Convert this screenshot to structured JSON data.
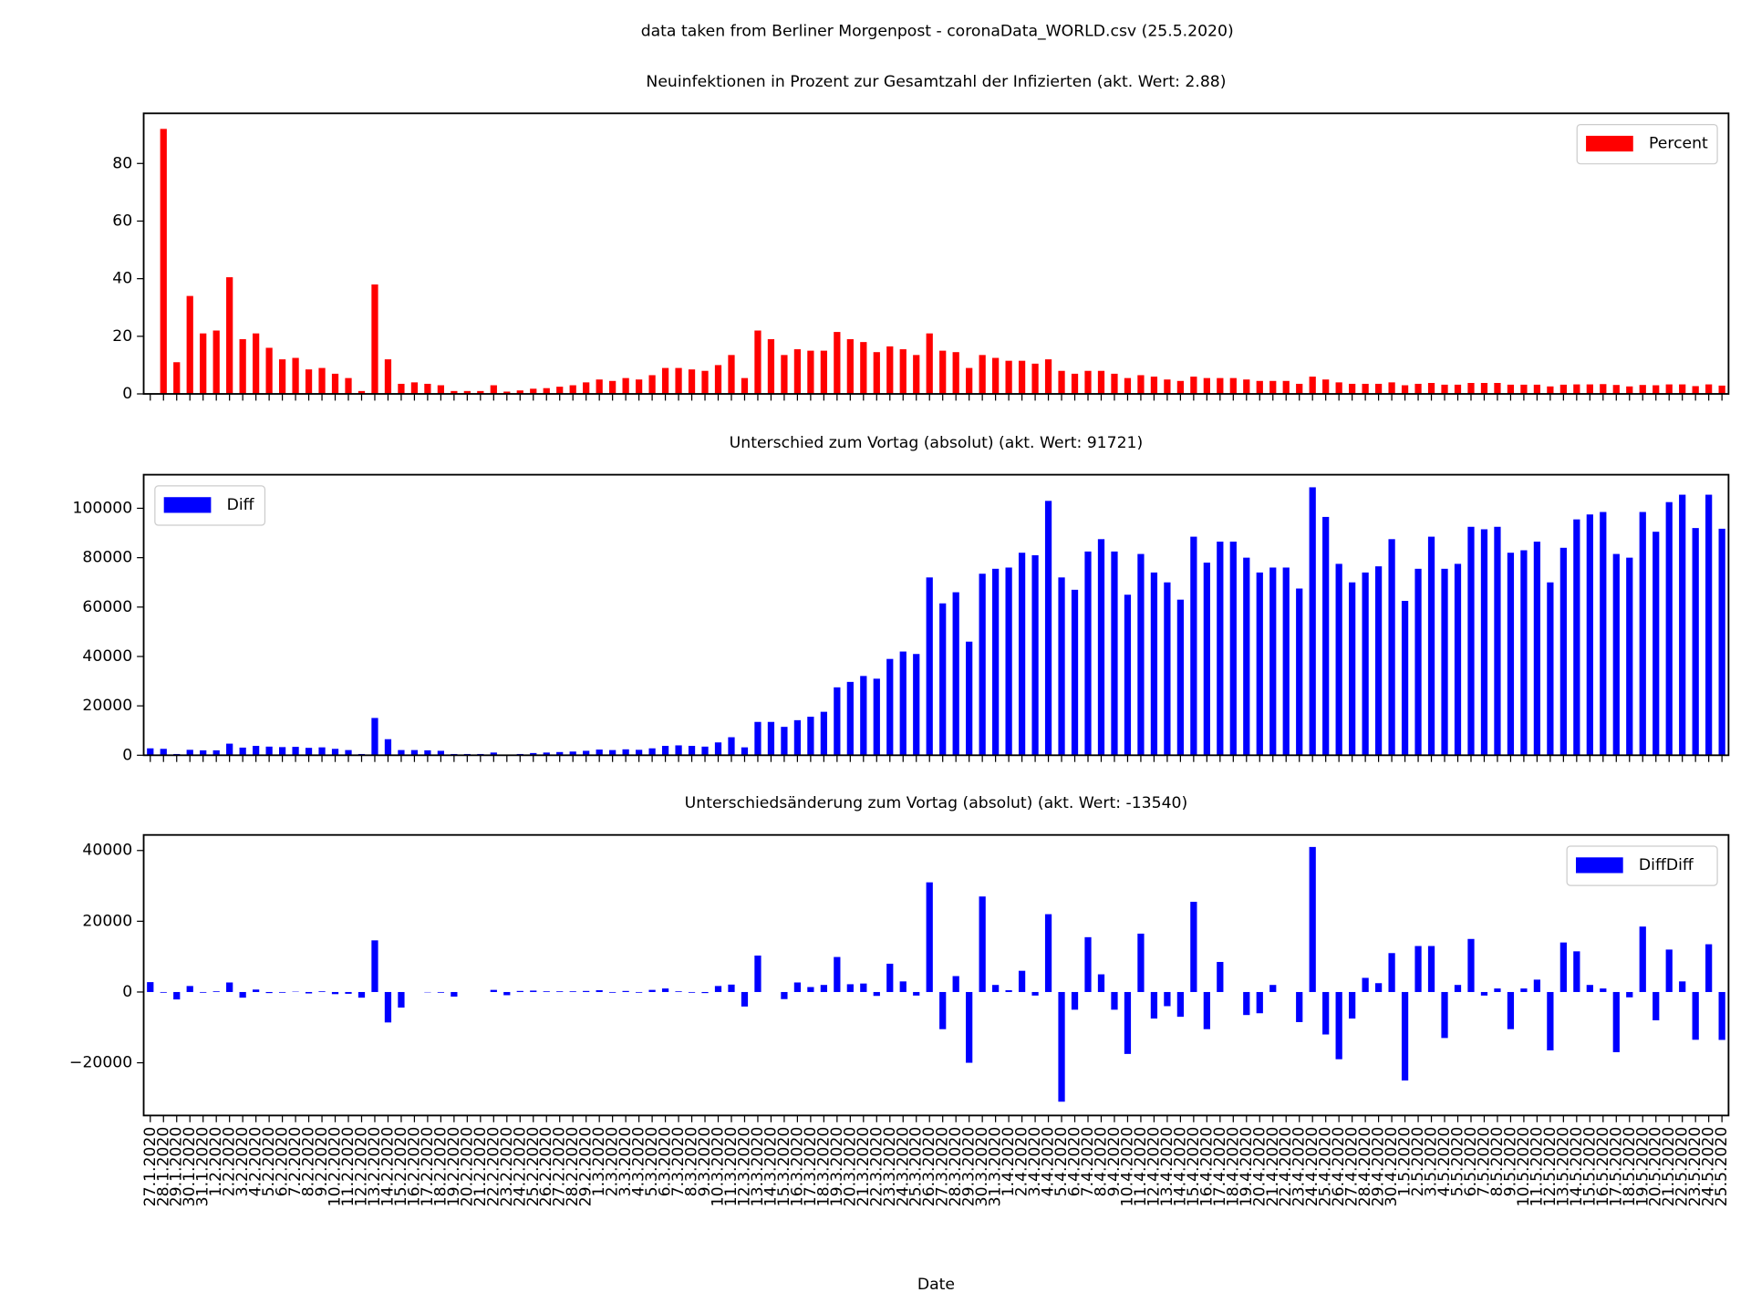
{
  "suptitle": "data taken from Berliner Morgenpost - coronaData_WORLD.csv (25.5.2020)",
  "chart_data": [
    {
      "type": "bar",
      "title": "Neuinfektionen in Prozent zur Gesamtzahl der Infizierten (akt. Wert: 2.88)",
      "series": [
        {
          "name": "Percent",
          "color": "#ff0000",
          "values": [
            0,
            92,
            11,
            34,
            21,
            22,
            40.5,
            19,
            21,
            16,
            12,
            12.5,
            8.5,
            9,
            7,
            5.5,
            1,
            38,
            12,
            3.5,
            4,
            3.5,
            3,
            1,
            1,
            1,
            3,
            0.8,
            1.2,
            1.8,
            2,
            2.5,
            3,
            4,
            5,
            4.5,
            5.5,
            5,
            6.5,
            9,
            9,
            8.5,
            8,
            10,
            13.5,
            5.5,
            22,
            19,
            13.5,
            15.5,
            15,
            15,
            21.5,
            19,
            18,
            14.5,
            16.5,
            15.5,
            13.5,
            21,
            15,
            14.5,
            9,
            13.5,
            12.5,
            11.5,
            11.5,
            10.5,
            12,
            8,
            7,
            8,
            8,
            7,
            5.5,
            6.5,
            6,
            5,
            4.5,
            6,
            5.5,
            5.5,
            5.5,
            5,
            4.5,
            4.5,
            4.5,
            3.5,
            6,
            5,
            4,
            3.5,
            3.5,
            3.5,
            4,
            3,
            3.5,
            3.8,
            3.2,
            3.2,
            3.8,
            3.8,
            3.8,
            3.2,
            3.2,
            3.2,
            2.6,
            3.2,
            3.3,
            3.3,
            3.4,
            3.1,
            2.6,
            3.1,
            3,
            3.3,
            3.3,
            2.7,
            3.3,
            2.88
          ]
        }
      ],
      "ylim": [
        0,
        97.4
      ],
      "yticks": [
        0,
        20,
        40,
        60,
        80
      ],
      "legend": "upper right"
    },
    {
      "type": "bar",
      "title": "Unterschied zum Vortag (absolut) (akt. Wert: 91721)",
      "series": [
        {
          "name": "Diff",
          "color": "#0000ff",
          "values": [
            2800,
            2600,
            500,
            2200,
            2000,
            2000,
            4700,
            3100,
            3800,
            3500,
            3300,
            3400,
            3000,
            3200,
            2600,
            2100,
            500,
            15100,
            6500,
            2100,
            2100,
            2000,
            1800,
            500,
            500,
            500,
            1100,
            200,
            500,
            900,
            1100,
            1300,
            1500,
            1800,
            2300,
            2100,
            2400,
            2200,
            2800,
            3800,
            4000,
            3800,
            3500,
            5200,
            7300,
            3200,
            13500,
            13500,
            11500,
            14200,
            15600,
            17600,
            27500,
            29700,
            32100,
            31000,
            39000,
            42000,
            41000,
            72000,
            61500,
            66000,
            46000,
            73500,
            75500,
            76000,
            82000,
            81000,
            103000,
            72000,
            67000,
            82500,
            87500,
            82500,
            65000,
            81500,
            74000,
            70000,
            63000,
            88500,
            78000,
            86500,
            86500,
            80000,
            74000,
            76000,
            76000,
            67500,
            108500,
            96500,
            77500,
            70000,
            74000,
            76500,
            87500,
            62500,
            75500,
            88500,
            75500,
            77500,
            92500,
            91500,
            92500,
            82000,
            83000,
            86500,
            70000,
            84000,
            95500,
            97500,
            98500,
            81500,
            80000,
            98500,
            90500,
            102500,
            105500,
            92000,
            105500,
            91721
          ]
        }
      ],
      "ylim": [
        0,
        113600
      ],
      "yticks": [
        0,
        20000,
        40000,
        60000,
        80000,
        100000
      ],
      "legend": "upper left"
    },
    {
      "type": "bar",
      "title": "Unterschiedsänderung zum Vortag (absolut) (akt. Wert: -13540)",
      "xlabel": "Date",
      "categories": [
        "27.1.2020",
        "28.1.2020",
        "29.1.2020",
        "30.1.2020",
        "31.1.2020",
        "1.2.2020",
        "2.2.2020",
        "3.2.2020",
        "4.2.2020",
        "5.2.2020",
        "6.2.2020",
        "7.2.2020",
        "8.2.2020",
        "9.2.2020",
        "10.2.2020",
        "11.2.2020",
        "12.2.2020",
        "13.2.2020",
        "14.2.2020",
        "15.2.2020",
        "16.2.2020",
        "17.2.2020",
        "18.2.2020",
        "19.2.2020",
        "20.2.2020",
        "21.2.2020",
        "22.2.2020",
        "23.2.2020",
        "24.2.2020",
        "25.2.2020",
        "26.2.2020",
        "27.2.2020",
        "28.2.2020",
        "29.2.2020",
        "1.3.2020",
        "2.3.2020",
        "3.3.2020",
        "4.3.2020",
        "5.3.2020",
        "6.3.2020",
        "7.3.2020",
        "8.3.2020",
        "9.3.2020",
        "10.3.2020",
        "11.3.2020",
        "12.3.2020",
        "13.3.2020",
        "14.3.2020",
        "15.3.2020",
        "16.3.2020",
        "17.3.2020",
        "18.3.2020",
        "19.3.2020",
        "20.3.2020",
        "21.3.2020",
        "22.3.2020",
        "23.3.2020",
        "24.3.2020",
        "25.3.2020",
        "26.3.2020",
        "27.3.2020",
        "28.3.2020",
        "29.3.2020",
        "30.3.2020",
        "31.3.2020",
        "1.4.2020",
        "2.4.2020",
        "3.4.2020",
        "4.4.2020",
        "5.4.2020",
        "6.4.2020",
        "7.4.2020",
        "8.4.2020",
        "9.4.2020",
        "10.4.2020",
        "11.4.2020",
        "12.4.2020",
        "13.4.2020",
        "14.4.2020",
        "15.4.2020",
        "16.4.2020",
        "17.4.2020",
        "18.4.2020",
        "19.4.2020",
        "20.4.2020",
        "21.4.2020",
        "22.4.2020",
        "23.4.2020",
        "24.4.2020",
        "25.4.2020",
        "26.4.2020",
        "27.4.2020",
        "28.4.2020",
        "29.4.2020",
        "30.4.2020",
        "1.5.2020",
        "2.5.2020",
        "3.5.2020",
        "4.5.2020",
        "5.5.2020",
        "6.5.2020",
        "7.5.2020",
        "8.5.2020",
        "9.5.2020",
        "10.5.2020",
        "11.5.2020",
        "12.5.2020",
        "13.5.2020",
        "14.5.2020",
        "15.5.2020",
        "16.5.2020",
        "17.5.2020",
        "18.5.2020",
        "19.5.2020",
        "20.5.2020",
        "21.5.2020",
        "22.5.2020",
        "23.5.2020",
        "24.5.2020",
        "25.5.2020"
      ],
      "series": [
        {
          "name": "DiffDiff",
          "color": "#0000ff",
          "values": [
            2800,
            -200,
            -2100,
            1700,
            -200,
            200,
            2700,
            -1600,
            700,
            -300,
            -200,
            100,
            -400,
            200,
            -600,
            -500,
            -1600,
            14600,
            -8600,
            -4400,
            0,
            -100,
            -200,
            -1300,
            0,
            0,
            600,
            -900,
            300,
            400,
            200,
            200,
            200,
            300,
            500,
            -200,
            300,
            -200,
            600,
            1000,
            200,
            -200,
            -300,
            1700,
            2100,
            -4100,
            10300,
            0,
            -2000,
            2700,
            1400,
            2000,
            9900,
            2200,
            2400,
            -1100,
            8000,
            3000,
            -1000,
            31000,
            -10500,
            4500,
            -20000,
            27000,
            2000,
            500,
            6000,
            -1000,
            22000,
            -31000,
            -5000,
            15500,
            5000,
            -5000,
            -17500,
            16500,
            -7500,
            -4000,
            -7000,
            25500,
            -10500,
            8500,
            0,
            -6500,
            -6000,
            2000,
            0,
            -8500,
            41000,
            -12000,
            -19000,
            -7500,
            4000,
            2500,
            11000,
            -25000,
            13000,
            13000,
            -13000,
            2000,
            15000,
            -1000,
            1000,
            -10500,
            1000,
            3500,
            -16500,
            14000,
            11500,
            2000,
            1000,
            -17000,
            -1500,
            18500,
            -8000,
            12000,
            3000,
            -13500,
            13500,
            -13540
          ]
        }
      ],
      "ylim": [
        -34900,
        44400
      ],
      "yticks": [
        {
          "value": -20000,
          "label": "−20000"
        },
        0,
        20000,
        40000
      ],
      "legend": "upper right"
    }
  ]
}
